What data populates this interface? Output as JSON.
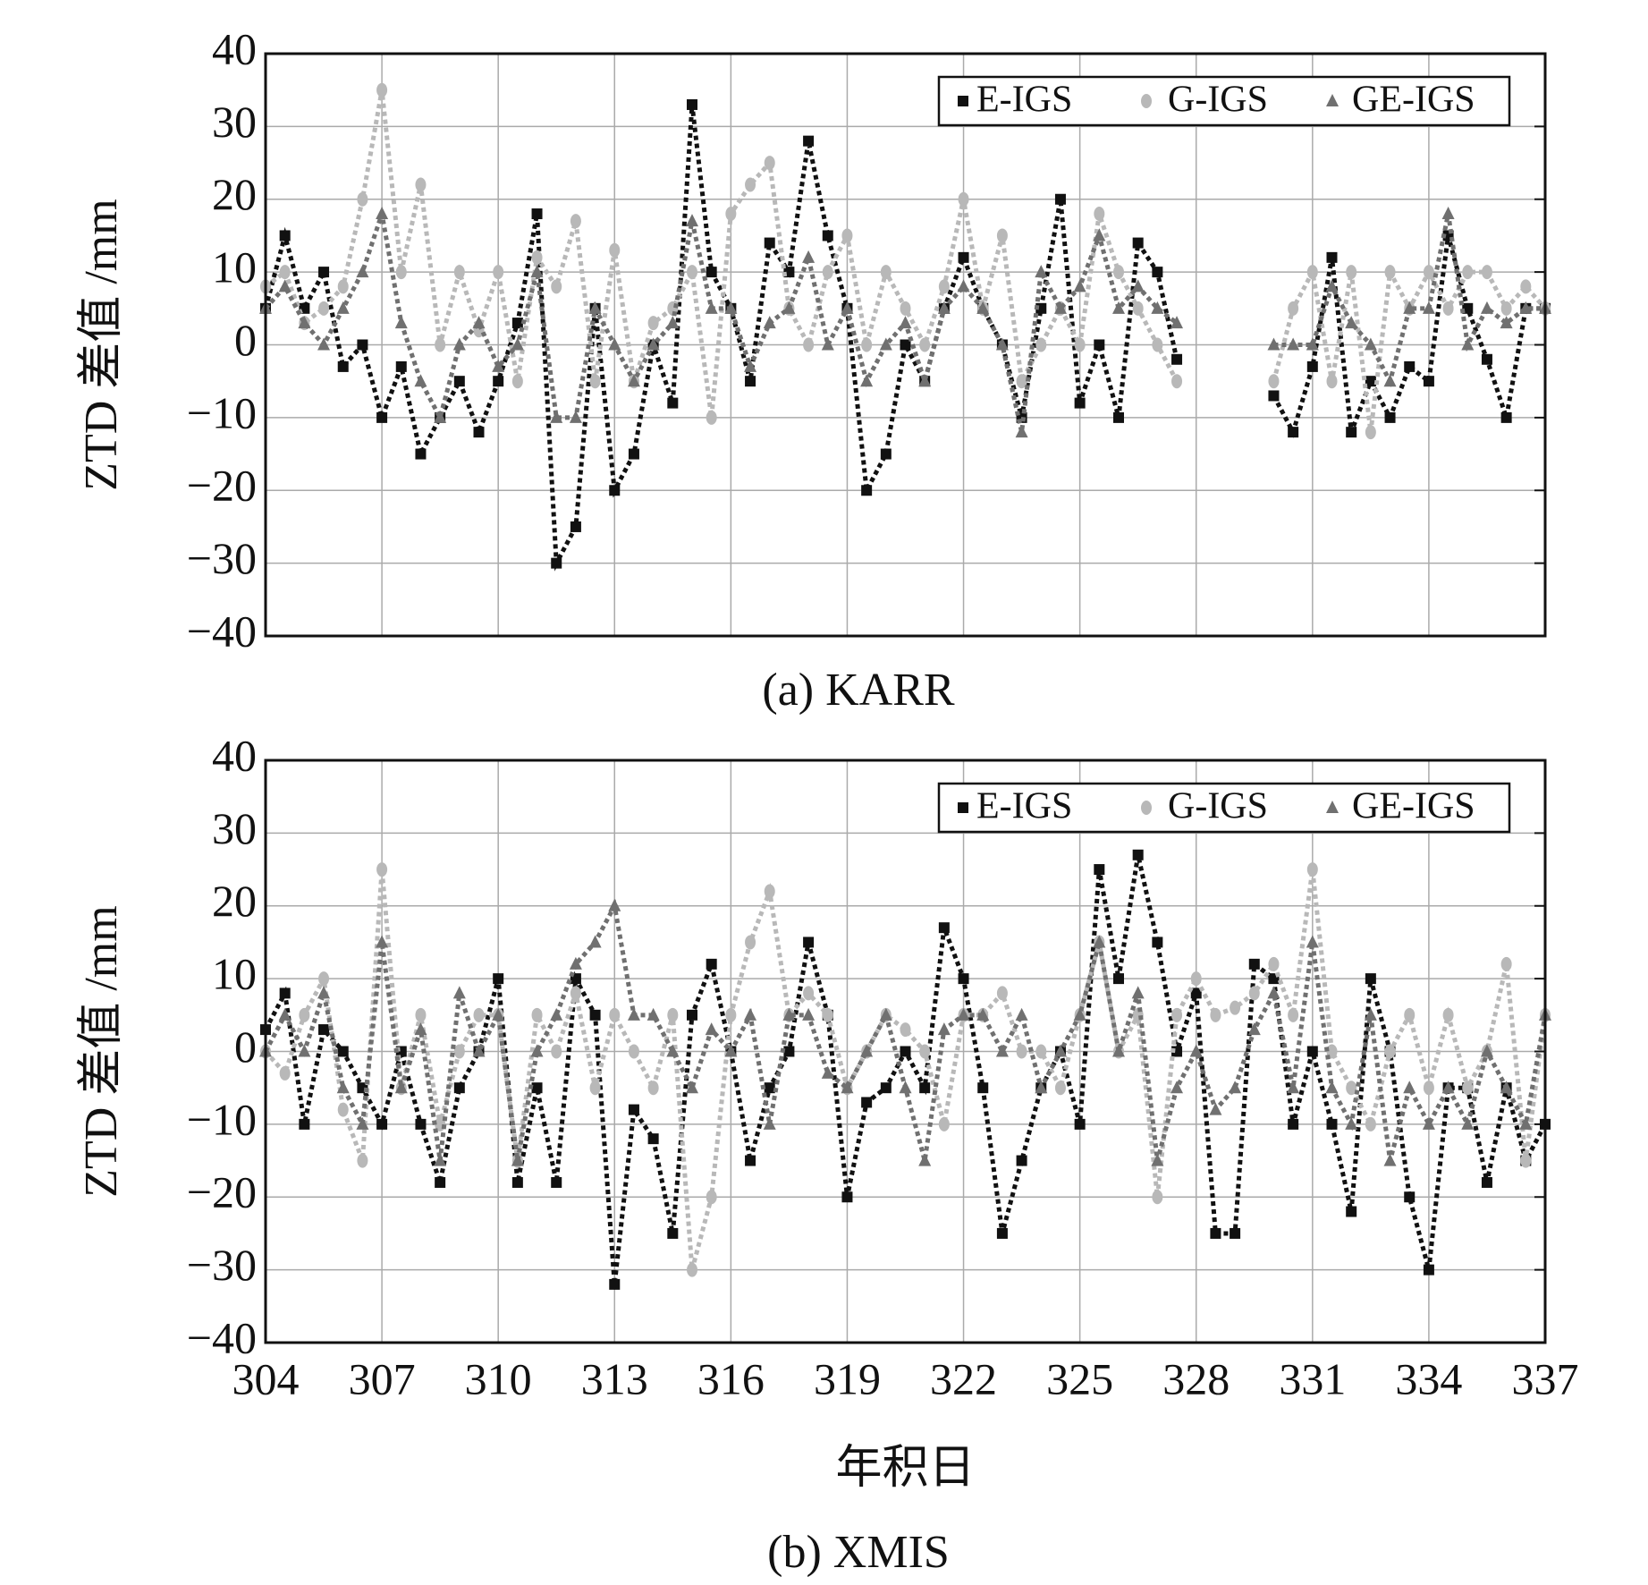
{
  "chart_data": [
    {
      "type": "scatter",
      "caption": "(a) KARR",
      "ylabel": "ZTD 差值 /mm",
      "legend": "upper right",
      "grid": true,
      "show_xtick_labels": false,
      "x": [
        304,
        304.5,
        305,
        305.5,
        306,
        306.5,
        307,
        307.5,
        308,
        308.5,
        309,
        309.5,
        310,
        310.5,
        311,
        311.5,
        312,
        312.5,
        313,
        313.5,
        314,
        314.5,
        315,
        315.5,
        316,
        316.5,
        317,
        317.5,
        318,
        318.5,
        319,
        319.5,
        320,
        320.5,
        321,
        321.5,
        322,
        322.5,
        323,
        323.5,
        324,
        324.5,
        325,
        325.5,
        326,
        326.5,
        327,
        327.5,
        328,
        328.5,
        329,
        329.5,
        330,
        330.5,
        331,
        331.5,
        332,
        332.5,
        333,
        333.5,
        334,
        334.5,
        335,
        335.5,
        336,
        336.5,
        337
      ],
      "xlim": [
        304,
        337
      ],
      "xticks": [
        304,
        307,
        310,
        313,
        316,
        319,
        322,
        325,
        328,
        331,
        334,
        337
      ],
      "ylim": [
        -40,
        40
      ],
      "yticks": [
        {
          "value": -40,
          "label": "−40"
        },
        {
          "value": -30,
          "label": "−30"
        },
        {
          "value": -20,
          "label": "−20"
        },
        {
          "value": -10,
          "label": "−10"
        },
        0,
        10,
        20,
        30,
        40
      ],
      "series": [
        {
          "name": "E-IGS",
          "color": "#111111",
          "marker": "square",
          "values": [
            5,
            15,
            5,
            10,
            -3,
            0,
            -10,
            -3,
            -15,
            -10,
            -5,
            -12,
            -5,
            3,
            18,
            -30,
            -25,
            5,
            -20,
            -15,
            0,
            -8,
            33,
            10,
            5,
            -5,
            14,
            10,
            28,
            15,
            5,
            -20,
            -15,
            0,
            -5,
            5,
            12,
            5,
            0,
            -10,
            5,
            20,
            -8,
            0,
            -10,
            14,
            10,
            -2,
            null,
            null,
            null,
            null,
            -7,
            -12,
            -3,
            12,
            -12,
            -5,
            -10,
            -3,
            -5,
            15,
            5,
            -2,
            -10,
            5,
            5
          ]
        },
        {
          "name": "G-IGS",
          "color": "#b8b8b8",
          "marker": "circle",
          "values": [
            8,
            10,
            3,
            5,
            8,
            20,
            35,
            10,
            22,
            0,
            10,
            2,
            10,
            -5,
            12,
            8,
            17,
            -5,
            13,
            -5,
            3,
            5,
            10,
            -10,
            18,
            22,
            25,
            5,
            0,
            10,
            15,
            0,
            10,
            5,
            0,
            8,
            20,
            5,
            15,
            -5,
            0,
            5,
            0,
            18,
            10,
            5,
            0,
            -5,
            null,
            null,
            null,
            null,
            -5,
            5,
            10,
            -5,
            10,
            -12,
            10,
            5,
            10,
            5,
            10,
            10,
            5,
            8,
            5
          ]
        },
        {
          "name": "GE-IGS",
          "color": "#707070",
          "marker": "triangle",
          "values": [
            5,
            8,
            3,
            0,
            5,
            10,
            18,
            3,
            -5,
            -10,
            0,
            3,
            -3,
            0,
            10,
            -10,
            -10,
            5,
            0,
            -5,
            0,
            3,
            17,
            5,
            5,
            -3,
            3,
            5,
            12,
            0,
            5,
            -5,
            0,
            3,
            -5,
            5,
            8,
            5,
            0,
            -12,
            10,
            5,
            8,
            15,
            5,
            8,
            5,
            3,
            null,
            null,
            null,
            null,
            0,
            0,
            0,
            8,
            3,
            0,
            -5,
            5,
            5,
            18,
            0,
            5,
            3,
            5,
            5
          ]
        }
      ]
    },
    {
      "type": "scatter",
      "caption": "(b) XMIS",
      "ylabel": "ZTD 差值 /mm",
      "xlabel": "年积日",
      "legend": "upper right",
      "grid": true,
      "show_xtick_labels": true,
      "x": [
        304,
        304.5,
        305,
        305.5,
        306,
        306.5,
        307,
        307.5,
        308,
        308.5,
        309,
        309.5,
        310,
        310.5,
        311,
        311.5,
        312,
        312.5,
        313,
        313.5,
        314,
        314.5,
        315,
        315.5,
        316,
        316.5,
        317,
        317.5,
        318,
        318.5,
        319,
        319.5,
        320,
        320.5,
        321,
        321.5,
        322,
        322.5,
        323,
        323.5,
        324,
        324.5,
        325,
        325.5,
        326,
        326.5,
        327,
        327.5,
        328,
        328.5,
        329,
        329.5,
        330,
        330.5,
        331,
        331.5,
        332,
        332.5,
        333,
        333.5,
        334,
        334.5,
        335,
        335.5,
        336,
        336.5,
        337
      ],
      "xlim": [
        304,
        337
      ],
      "xticks": [
        304,
        307,
        310,
        313,
        316,
        319,
        322,
        325,
        328,
        331,
        334,
        337
      ],
      "ylim": [
        -40,
        40
      ],
      "yticks": [
        {
          "value": -40,
          "label": "−40"
        },
        {
          "value": -30,
          "label": "−30"
        },
        {
          "value": -20,
          "label": "−20"
        },
        {
          "value": -10,
          "label": "−10"
        },
        0,
        10,
        20,
        30,
        40
      ],
      "series": [
        {
          "name": "E-IGS",
          "color": "#111111",
          "marker": "square",
          "values": [
            3,
            8,
            -10,
            3,
            0,
            -5,
            -10,
            0,
            -10,
            -18,
            -5,
            0,
            10,
            -18,
            -5,
            -18,
            10,
            5,
            -32,
            -8,
            -12,
            -25,
            5,
            12,
            0,
            -15,
            -5,
            0,
            15,
            5,
            -20,
            -7,
            -5,
            0,
            -5,
            17,
            10,
            -5,
            -25,
            -15,
            -5,
            0,
            -10,
            25,
            10,
            27,
            15,
            0,
            8,
            -25,
            -25,
            12,
            10,
            -10,
            0,
            -10,
            -22,
            10,
            0,
            -20,
            -30,
            -5,
            -5,
            -18,
            -5,
            -15,
            -10
          ]
        },
        {
          "name": "G-IGS",
          "color": "#b8b8b8",
          "marker": "circle",
          "values": [
            0,
            -3,
            5,
            10,
            -8,
            -15,
            25,
            -5,
            5,
            -10,
            0,
            5,
            5,
            -15,
            5,
            0,
            8,
            -5,
            5,
            0,
            -5,
            5,
            -30,
            -20,
            5,
            15,
            22,
            5,
            8,
            5,
            -5,
            0,
            5,
            3,
            0,
            -10,
            5,
            5,
            8,
            0,
            0,
            -5,
            5,
            15,
            0,
            5,
            -20,
            5,
            10,
            5,
            6,
            8,
            12,
            5,
            25,
            0,
            -5,
            -10,
            0,
            5,
            -5,
            5,
            -5,
            0,
            12,
            -15,
            5
          ]
        },
        {
          "name": "GE-IGS",
          "color": "#707070",
          "marker": "triangle",
          "values": [
            0,
            5,
            0,
            8,
            -5,
            -10,
            15,
            -5,
            3,
            -15,
            8,
            0,
            5,
            -15,
            0,
            5,
            12,
            15,
            20,
            5,
            5,
            0,
            -5,
            3,
            0,
            5,
            -10,
            5,
            5,
            -3,
            -5,
            0,
            5,
            -5,
            -15,
            3,
            5,
            5,
            0,
            5,
            -5,
            0,
            5,
            15,
            0,
            8,
            -15,
            -5,
            0,
            -8,
            -5,
            3,
            8,
            -5,
            15,
            -5,
            -10,
            5,
            -15,
            -5,
            -10,
            -5,
            -10,
            0,
            -5,
            -10,
            5
          ]
        }
      ]
    }
  ]
}
